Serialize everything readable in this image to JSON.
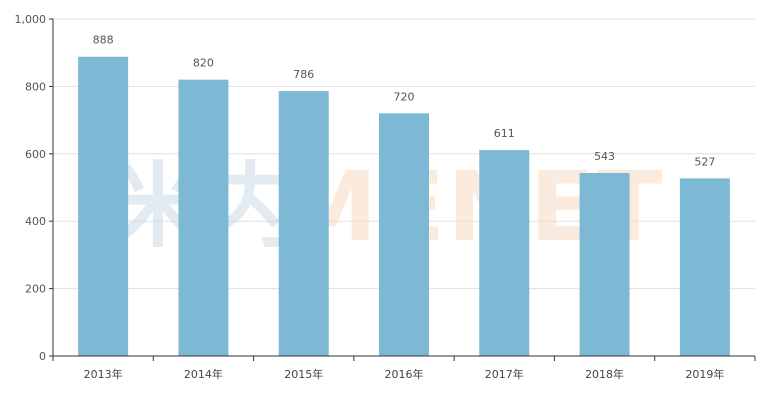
{
  "watermark": {
    "cn": "米内",
    "en": "MENET"
  },
  "colors": {
    "bar": "#7db8d4",
    "grid": "#e0e0e0",
    "axis": "#333333"
  },
  "chart_data": {
    "type": "bar",
    "title": "",
    "xlabel": "",
    "ylabel": "",
    "categories": [
      "2013年",
      "2014年",
      "2015年",
      "2016年",
      "2017年",
      "2018年",
      "2019年"
    ],
    "values": [
      888,
      820,
      786,
      720,
      611,
      543,
      527
    ],
    "data_labels": [
      "888",
      "820",
      "786",
      "720",
      "611",
      "543",
      "527"
    ],
    "ylim": [
      0,
      1000
    ],
    "yticks": [
      0,
      200,
      400,
      600,
      800,
      1000
    ],
    "ytick_labels": [
      "0",
      "200",
      "400",
      "600",
      "800",
      "1,000"
    ],
    "grid": true,
    "legend": "none"
  }
}
